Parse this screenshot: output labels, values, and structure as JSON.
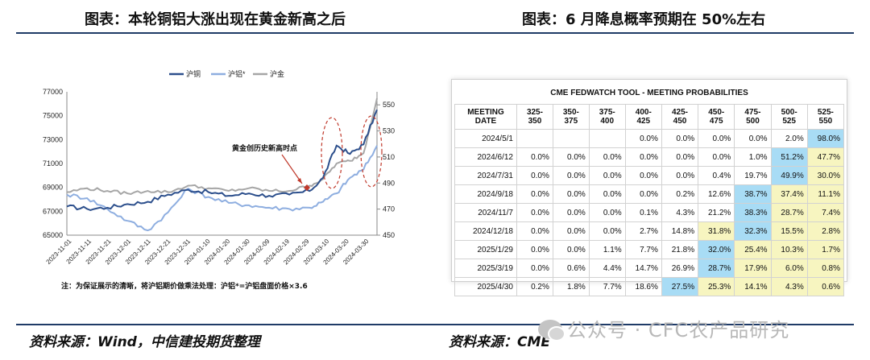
{
  "left": {
    "title": "图表：本轮铜铝大涨出现在黄金新高之后",
    "source": "资料来源：Wind，中信建投期货整理",
    "note": "注：为保证展示的清晰，将沪铝期价做乘法处理：沪铝*=沪铝盘面价格×3.6",
    "annotation": "黄金创历史新高时点"
  },
  "right": {
    "title": "图表：6 月降息概率预期在 50%左右",
    "source": "资料来源：CME"
  },
  "watermark": "公众号 · CFC农产品研究",
  "colors": {
    "copper": "#2c4f8c",
    "aluminum": "#8eaee0",
    "gold": "#a6a6a6",
    "rule": "#1f3b67",
    "marker": "#c0392b"
  },
  "chart_data": {
    "type": "line",
    "legend": [
      "沪铜",
      "沪铝*",
      "沪金"
    ],
    "legend_position": "top-center",
    "x": [
      "2023-11-01",
      "2023-11-11",
      "2023-11-21",
      "2023-12-01",
      "2023-12-11",
      "2023-12-21",
      "2023-12-31",
      "2024-01-10",
      "2024-01-20",
      "2024-01-30",
      "2024-02-09",
      "2024-02-19",
      "2024-02-29",
      "2024-03-10",
      "2024-03-20",
      "2024-03-30"
    ],
    "y_left_ticks": [
      "77000",
      "75000",
      "73000",
      "71000",
      "69000",
      "67000",
      "65000"
    ],
    "y_right_ticks": [
      "550",
      "530",
      "510",
      "490",
      "470",
      "450"
    ],
    "ylim_left": [
      65000,
      77000
    ],
    "ylim_right": [
      450,
      560
    ],
    "series": [
      {
        "name": "沪铜",
        "axis": "left",
        "values": [
          67400,
          67200,
          67300,
          67600,
          67800,
          68400,
          68800,
          68600,
          68300,
          68500,
          68300,
          68400,
          68700,
          69800,
          72500,
          71800,
          72600,
          75500
        ]
      },
      {
        "name": "沪铝*",
        "axis": "left",
        "values": [
          68400,
          68100,
          67200,
          66200,
          65400,
          66900,
          68900,
          68200,
          67700,
          67500,
          67300,
          67200,
          67300,
          67800,
          68500,
          69800,
          70500,
          72500
        ]
      },
      {
        "name": "沪金",
        "axis": "right",
        "values": [
          483,
          486,
          484,
          482,
          484,
          483,
          488,
          486,
          484,
          486,
          484,
          484,
          488,
          493,
          505,
          507,
          513,
          555
        ]
      }
    ],
    "x_values": [
      0,
      3,
      6,
      9,
      12,
      15,
      18,
      21,
      24,
      27,
      30,
      33,
      36,
      38,
      40,
      42,
      44,
      46
    ]
  },
  "fed_table": {
    "title": "CME FEDWATCH TOOL - MEETING PROBABILITIES",
    "header": [
      "MEETING DATE",
      "325-350",
      "350-375",
      "375-400",
      "400-425",
      "425-450",
      "450-475",
      "475-500",
      "500-525",
      "525-550"
    ],
    "rows": [
      {
        "date": "2024/5/1",
        "cells": [
          "",
          "",
          "",
          "0.0%",
          "0.0%",
          "0.0%",
          "0.0%",
          "2.0%",
          "98.0%"
        ],
        "hi": [
          8
        ],
        "mid": []
      },
      {
        "date": "2024/6/12",
        "cells": [
          "0.0%",
          "0.0%",
          "0.0%",
          "0.0%",
          "0.0%",
          "0.0%",
          "1.0%",
          "51.2%",
          "47.7%"
        ],
        "hi": [
          7
        ],
        "mid": [
          8
        ]
      },
      {
        "date": "2024/7/31",
        "cells": [
          "0.0%",
          "0.0%",
          "0.0%",
          "0.0%",
          "0.0%",
          "0.4%",
          "19.7%",
          "49.9%",
          "30.0%"
        ],
        "hi": [
          7
        ],
        "mid": [
          8
        ]
      },
      {
        "date": "2024/9/18",
        "cells": [
          "0.0%",
          "0.0%",
          "0.0%",
          "0.0%",
          "0.2%",
          "12.6%",
          "38.7%",
          "37.4%",
          "11.1%"
        ],
        "hi": [
          6
        ],
        "mid": [
          7,
          8
        ]
      },
      {
        "date": "2024/11/7",
        "cells": [
          "0.0%",
          "0.0%",
          "0.0%",
          "0.1%",
          "4.3%",
          "21.2%",
          "38.3%",
          "28.7%",
          "7.4%"
        ],
        "hi": [
          6
        ],
        "mid": [
          7,
          8
        ]
      },
      {
        "date": "2024/12/18",
        "cells": [
          "0.0%",
          "0.0%",
          "0.0%",
          "2.7%",
          "14.8%",
          "31.8%",
          "32.3%",
          "15.5%",
          "2.8%"
        ],
        "hi": [
          6
        ],
        "mid": [
          5,
          7,
          8
        ]
      },
      {
        "date": "2025/1/29",
        "cells": [
          "0.0%",
          "0.0%",
          "1.1%",
          "7.7%",
          "21.8%",
          "32.0%",
          "25.4%",
          "10.3%",
          "1.7%"
        ],
        "hi": [
          5
        ],
        "mid": [
          6,
          7,
          8
        ]
      },
      {
        "date": "2025/3/19",
        "cells": [
          "0.0%",
          "0.6%",
          "4.4%",
          "14.7%",
          "26.9%",
          "28.7%",
          "17.9%",
          "6.0%",
          "0.8%"
        ],
        "hi": [
          5
        ],
        "mid": [
          6,
          7,
          8
        ]
      },
      {
        "date": "2025/4/30",
        "cells": [
          "0.2%",
          "1.8%",
          "7.7%",
          "18.6%",
          "27.5%",
          "25.3%",
          "14.1%",
          "4.3%",
          "0.6%"
        ],
        "hi": [
          4
        ],
        "mid": [
          5,
          6,
          7,
          8
        ]
      }
    ]
  }
}
